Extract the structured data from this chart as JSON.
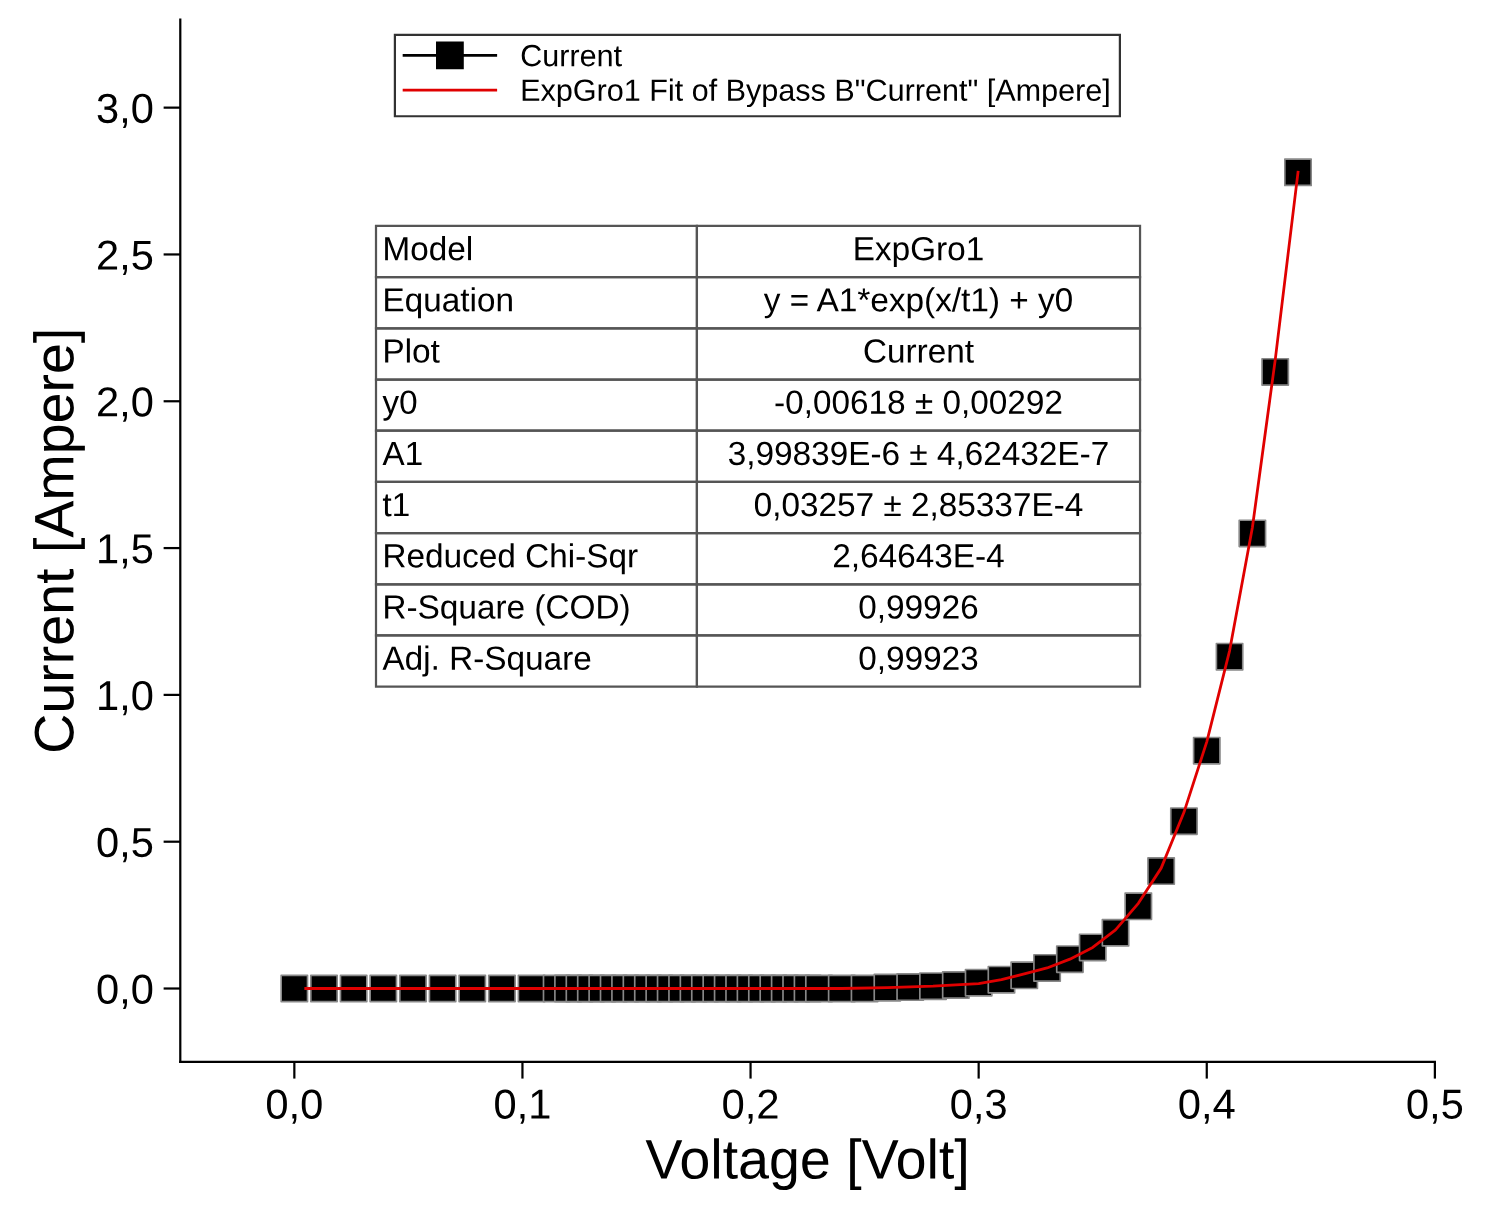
{
  "chart_data": {
    "type": "scatter",
    "xlabel": "Voltage [Volt]",
    "ylabel": "Current [Ampere]",
    "xlim": [
      -0.05,
      0.5
    ],
    "ylim": [
      -0.25,
      3.3
    ],
    "xticks": [
      {
        "value": 0,
        "label": "0,0"
      },
      {
        "value": 0.1,
        "label": "0,1"
      },
      {
        "value": 0.2,
        "label": "0,2"
      },
      {
        "value": 0.3,
        "label": "0,3"
      },
      {
        "value": 0.4,
        "label": "0,4"
      },
      {
        "value": 0.5,
        "label": "0,5"
      }
    ],
    "yticks": [
      {
        "value": 0,
        "label": "0,0"
      },
      {
        "value": 0.5,
        "label": "0,5"
      },
      {
        "value": 1,
        "label": "1,0"
      },
      {
        "value": 1.5,
        "label": "1,5"
      },
      {
        "value": 2,
        "label": "2,0"
      },
      {
        "value": 2.5,
        "label": "2,5"
      },
      {
        "value": 3,
        "label": "3,0"
      }
    ],
    "marker": "square",
    "legend": "top",
    "grid": false,
    "series": [
      {
        "name": "Current",
        "color": "#000000",
        "x": [
          0,
          0.013,
          0.026,
          0.039,
          0.052,
          0.065,
          0.078,
          0.091,
          0.104,
          0.115,
          0.12,
          0.125,
          0.13,
          0.135,
          0.14,
          0.145,
          0.15,
          0.155,
          0.16,
          0.165,
          0.17,
          0.175,
          0.18,
          0.185,
          0.19,
          0.195,
          0.2,
          0.205,
          0.21,
          0.215,
          0.22,
          0.225,
          0.23,
          0.24,
          0.25,
          0.26,
          0.27,
          0.28,
          0.29,
          0.3,
          0.31,
          0.32,
          0.33,
          0.34,
          0.35,
          0.36,
          0.37,
          0.38,
          0.39,
          0.4,
          0.41,
          0.42,
          0.43,
          0.44
        ],
        "values": [
          0,
          0,
          0,
          0,
          0,
          0,
          0,
          0,
          0,
          0,
          0,
          0,
          0,
          0,
          0,
          0,
          0,
          0,
          0,
          0,
          0,
          0,
          0,
          0,
          0,
          0,
          0,
          0,
          0,
          0,
          0,
          0,
          0,
          0,
          0,
          0.003,
          0.005,
          0.008,
          0.012,
          0.02,
          0.03,
          0.045,
          0.07,
          0.1,
          0.14,
          0.19,
          0.28,
          0.4,
          0.57,
          0.81,
          1.13,
          1.55,
          2.1,
          2.78
        ]
      },
      {
        "name": "ExpGro1 Fit of Bypass B\"Current\" [Ampere]",
        "type": "line",
        "color": "#e00000",
        "marker": "none",
        "x": [
          0.005,
          0.05,
          0.1,
          0.15,
          0.2,
          0.22,
          0.24,
          0.26,
          0.28,
          0.3,
          0.31,
          0.32,
          0.33,
          0.34,
          0.35,
          0.36,
          0.37,
          0.38,
          0.39,
          0.4,
          0.41,
          0.42,
          0.43,
          0.44
        ],
        "values": [
          0,
          0,
          0,
          0,
          0,
          0,
          0,
          0.003,
          0.008,
          0.017,
          0.03,
          0.05,
          0.07,
          0.1,
          0.14,
          0.2,
          0.29,
          0.41,
          0.6,
          0.84,
          1.15,
          1.57,
          2.14,
          2.78
        ]
      }
    ],
    "annotations": [
      "Model",
      "ExpGro1",
      "Equation",
      "y = A1*exp(x/t1) + y0",
      "Plot",
      "Current",
      "y0",
      "-0,00618 ± 0,00292",
      "A1",
      "3,99839E-6 ± 4,62432E-7",
      "t1",
      "0,03257 ± 2,85337E-4",
      "Reduced Chi-Sqr",
      "2,64643E-4",
      "R-Square (COD)",
      "0,99926",
      "Adj. R-Square",
      "0,99923"
    ]
  }
}
